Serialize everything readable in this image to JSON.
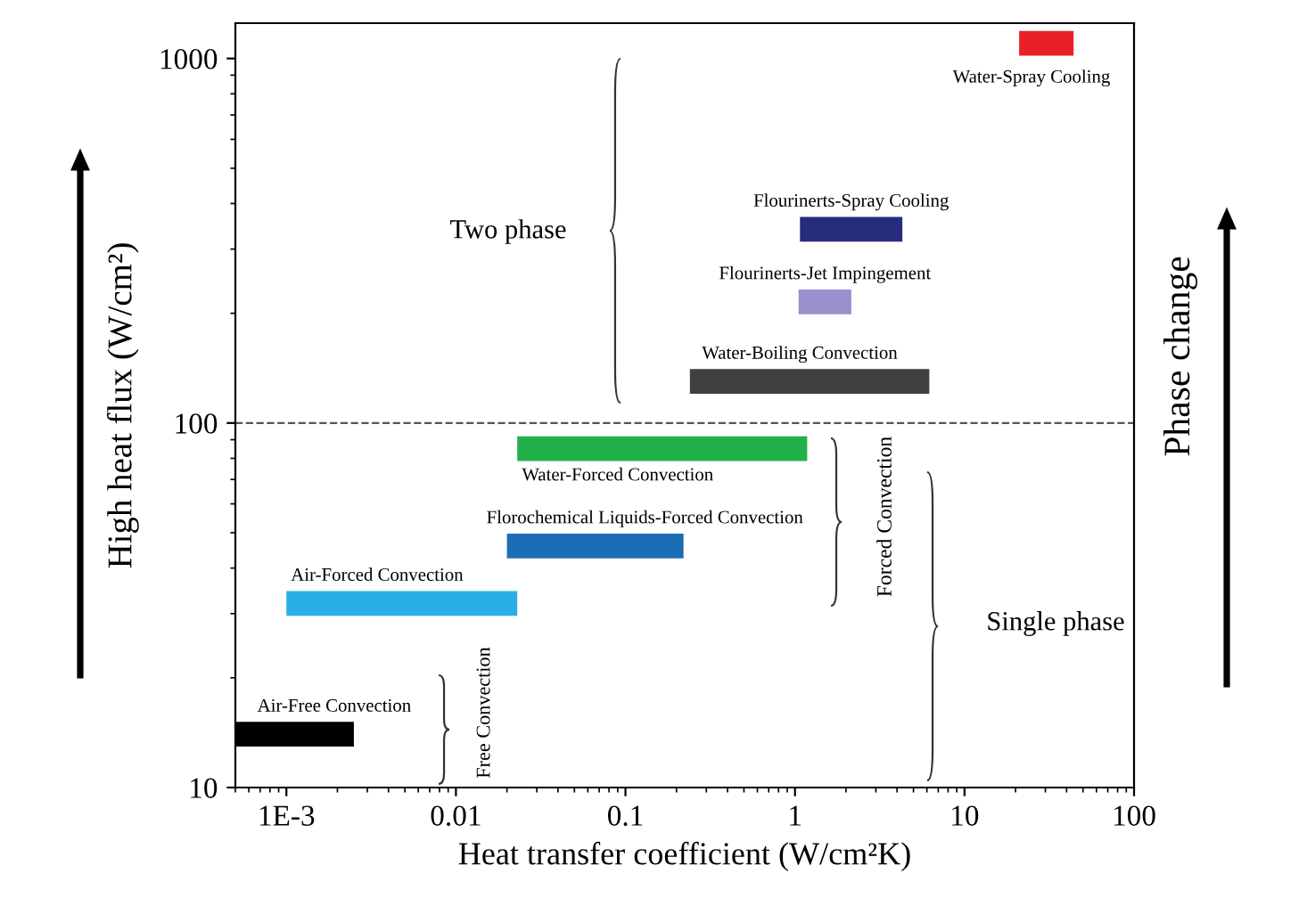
{
  "chart_data": {
    "type": "line",
    "xlabel": "Heat transfer coefficient (W/cm²K)",
    "ylabel": "High heat flux (W/cm²)",
    "log": "xy",
    "xlim": [
      0.0005,
      100
    ],
    "xticks": [
      {
        "value": 0.001,
        "label": "1E-3"
      },
      0.01,
      0.1,
      1,
      10,
      100
    ],
    "ylim": [
      10,
      1250
    ],
    "yticks": [
      10,
      100,
      1000
    ],
    "grid": false,
    "legend": false,
    "marker": "none",
    "line_style": "solid",
    "ref_lines": [
      {
        "axis": "y",
        "value": 100,
        "line_style": "dashed",
        "color": "#555555"
      }
    ],
    "annotations": [
      "Two phase",
      "Forced Convection",
      "Free Convection",
      "Single phase",
      "Phase change"
    ],
    "series": [
      {
        "name": "Water-Spray Cooling",
        "color": "#e8202a",
        "x": [
          21,
          44
        ],
        "values": [
          1100,
          1100
        ]
      },
      {
        "name": "Flourinerts-Spray Cooling",
        "color": "#272c7c",
        "x": [
          1.07,
          4.3
        ],
        "values": [
          340,
          340
        ]
      },
      {
        "name": "Flourinerts-Jet Impingement",
        "color": "#9b8fce",
        "x": [
          1.05,
          2.15
        ],
        "values": [
          215,
          215
        ]
      },
      {
        "name": "Water-Boiling Convection",
        "color": "#404040",
        "x": [
          0.24,
          6.2
        ],
        "values": [
          130,
          130
        ]
      },
      {
        "name": "Water-Forced Convection",
        "color": "#22b04b",
        "x": [
          0.023,
          1.18
        ],
        "values": [
          85,
          85
        ]
      },
      {
        "name": "Florochemical Liquids-Forced Convection",
        "color": "#1b6db5",
        "x": [
          0.02,
          0.22
        ],
        "values": [
          46,
          46
        ]
      },
      {
        "name": "Air-Forced Convection",
        "color": "#27aee4",
        "x": [
          0.001,
          0.023
        ],
        "values": [
          32,
          32
        ]
      },
      {
        "name": "Air-Free Convection",
        "color": "#000000",
        "x": [
          0.0005,
          0.0025
        ],
        "values": [
          14,
          14
        ]
      }
    ]
  }
}
